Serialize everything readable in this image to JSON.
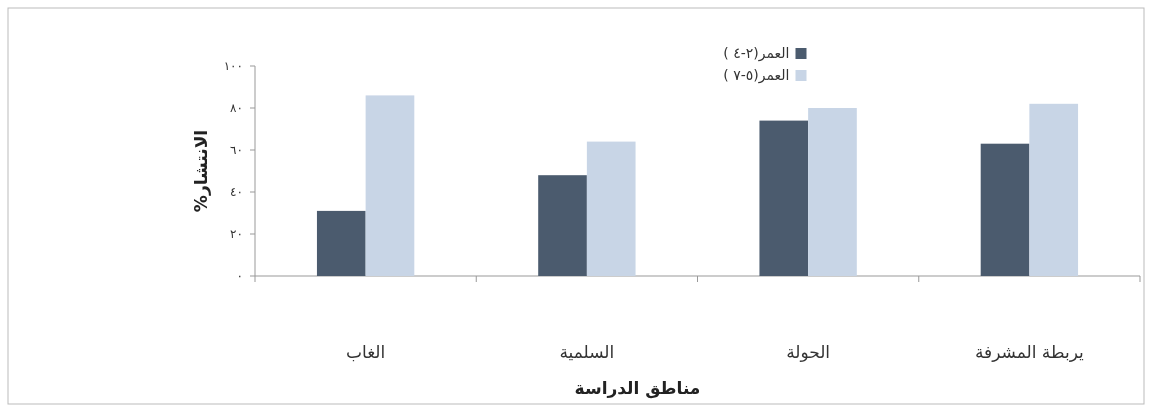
{
  "chart_data": {
    "type": "bar",
    "categories": [
      "الغاب",
      "السلمية",
      "الحولة",
      "يربطة المشرفة"
    ],
    "series": [
      {
        "name": "العمر(٢-٤ )",
        "color": "#4b5b6e",
        "values": [
          31,
          48,
          74,
          63
        ]
      },
      {
        "name": "العمر(٥-٧ )",
        "color": "#c8d5e6",
        "values": [
          86,
          64,
          80,
          82
        ]
      }
    ],
    "xlabel": "مناطق الدراسة",
    "ylabel": "الانتشار%",
    "ylim": [
      0,
      100
    ],
    "yticks": [
      {
        "value": 0,
        "label": "٠"
      },
      {
        "value": 20,
        "label": "٢٠"
      },
      {
        "value": 40,
        "label": "٤٠"
      },
      {
        "value": 60,
        "label": "٦٠"
      },
      {
        "value": 80,
        "label": "٨٠"
      },
      {
        "value": 100,
        "label": "١٠٠"
      }
    ],
    "grid": false,
    "legend": "top"
  }
}
